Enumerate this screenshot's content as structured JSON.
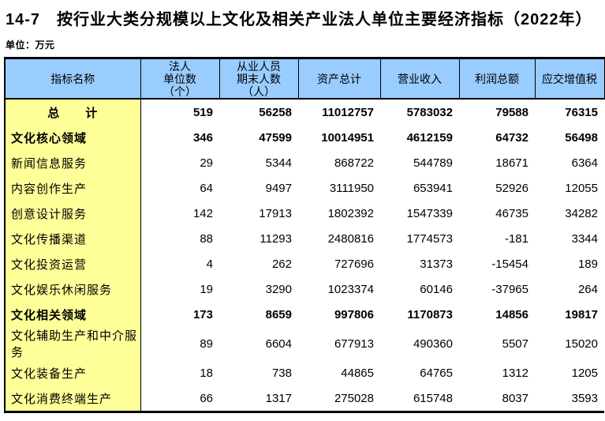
{
  "title": "14-7　按行业大类分规模以上文化及相关产业法人单位主要经济指标（2022年）",
  "unit_label": "单位：万元",
  "colors": {
    "header_bg": "#99ccff",
    "label_col_bg": "#ffff99",
    "border": "#000000",
    "text": "#000000"
  },
  "table": {
    "headers": {
      "indicator": "指标名称",
      "legal_units": [
        "法人",
        "单位数",
        "（个）"
      ],
      "employees": [
        "从业人员",
        "期末人数",
        "（人）"
      ],
      "assets": "资产总计",
      "revenue": "营业收入",
      "profit": "利润总额",
      "vat": "应交增值税"
    },
    "rows": [
      {
        "name": "总　　计",
        "c1": "519",
        "c2": "56258",
        "c3": "11012757",
        "c4": "5783032",
        "c5": "79588",
        "c6": "76315"
      },
      {
        "name": "文化核心领域",
        "c1": "346",
        "c2": "47599",
        "c3": "10014951",
        "c4": "4612159",
        "c5": "64732",
        "c6": "56498"
      },
      {
        "name": "新闻信息服务",
        "c1": "29",
        "c2": "5344",
        "c3": "868722",
        "c4": "544789",
        "c5": "18671",
        "c6": "6364"
      },
      {
        "name": "内容创作生产",
        "c1": "64",
        "c2": "9497",
        "c3": "3111950",
        "c4": "653941",
        "c5": "52926",
        "c6": "12055"
      },
      {
        "name": "创意设计服务",
        "c1": "142",
        "c2": "17913",
        "c3": "1802392",
        "c4": "1547339",
        "c5": "46735",
        "c6": "34282"
      },
      {
        "name": "文化传播渠道",
        "c1": "88",
        "c2": "11293",
        "c3": "2480816",
        "c4": "1774573",
        "c5": "-181",
        "c6": "3344"
      },
      {
        "name": "文化投资运营",
        "c1": "4",
        "c2": "262",
        "c3": "727696",
        "c4": "31373",
        "c5": "-15454",
        "c6": "189"
      },
      {
        "name": "文化娱乐休闲服务",
        "c1": "19",
        "c2": "3290",
        "c3": "1023374",
        "c4": "60146",
        "c5": "-37965",
        "c6": "264"
      },
      {
        "name": "文化相关领域",
        "c1": "173",
        "c2": "8659",
        "c3": "997806",
        "c4": "1170873",
        "c5": "14856",
        "c6": "19817"
      },
      {
        "name": "文化辅助生产和中介服务",
        "c1": "89",
        "c2": "6604",
        "c3": "677913",
        "c4": "490360",
        "c5": "5507",
        "c6": "15020"
      },
      {
        "name": "文化装备生产",
        "c1": "18",
        "c2": "738",
        "c3": "44865",
        "c4": "64765",
        "c5": "1312",
        "c6": "1205"
      },
      {
        "name": "文化消费终端生产",
        "c1": "66",
        "c2": "1317",
        "c3": "275028",
        "c4": "615748",
        "c5": "8037",
        "c6": "3593"
      }
    ]
  }
}
